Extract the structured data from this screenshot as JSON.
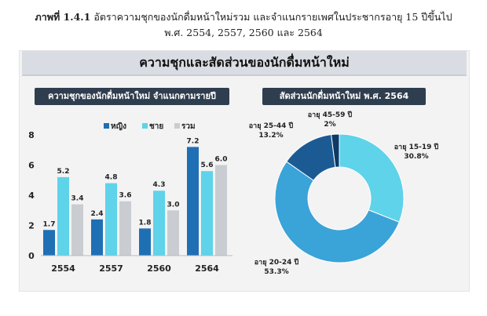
{
  "caption": {
    "label": "ภาพที่ 1.4.1",
    "line1": " อัตราความชุกของนักดื่มหน้าใหม่รวม และจำแนกรายเพศในประชากรอายุ 15 ปีขึ้นไป",
    "line2": "พ.ศ. 2554, 2557, 2560 และ 2564"
  },
  "banner": "ความชุกและสัดส่วนของนักดื่มหน้าใหม่",
  "colors": {
    "female": "#1f6fb5",
    "male": "#5ed3ea",
    "total": "#c9cdd2",
    "donut": [
      "#5ed3ea",
      "#3aa3d8",
      "#1c5a94",
      "#0d3a66"
    ],
    "title_bg": "#2f3e4f"
  },
  "chart_data": [
    {
      "type": "bar",
      "title": "ความชุกของนักดื่มหน้าใหม่ จำแนกตามรายปี",
      "categories": [
        "2554",
        "2557",
        "2560",
        "2564"
      ],
      "series": [
        {
          "name": "หญิง",
          "values": [
            1.7,
            2.4,
            1.8,
            7.2
          ]
        },
        {
          "name": "ชาย",
          "values": [
            5.2,
            4.8,
            4.3,
            5.6
          ]
        },
        {
          "name": "รวม",
          "values": [
            3.4,
            3.6,
            3.0,
            6.0
          ]
        }
      ],
      "yticks": [
        0,
        2,
        4,
        6,
        8
      ],
      "ylim": [
        0,
        8
      ],
      "legend": "top"
    },
    {
      "type": "pie",
      "title": "สัดส่วนนักดื่มหน้าใหม่ พ.ศ. 2564",
      "slices": [
        {
          "label": "อายุ 15-19 ปี",
          "value": 30.8,
          "text": "30.8%"
        },
        {
          "label": "อายุ 20-24 ปี",
          "value": 53.3,
          "text": "53.3%"
        },
        {
          "label": "อายุ 25-44 ปี",
          "value": 13.2,
          "text": "13.2%"
        },
        {
          "label": "อายุ 45-59 ปี",
          "value": 2,
          "text": "2%"
        }
      ]
    }
  ]
}
